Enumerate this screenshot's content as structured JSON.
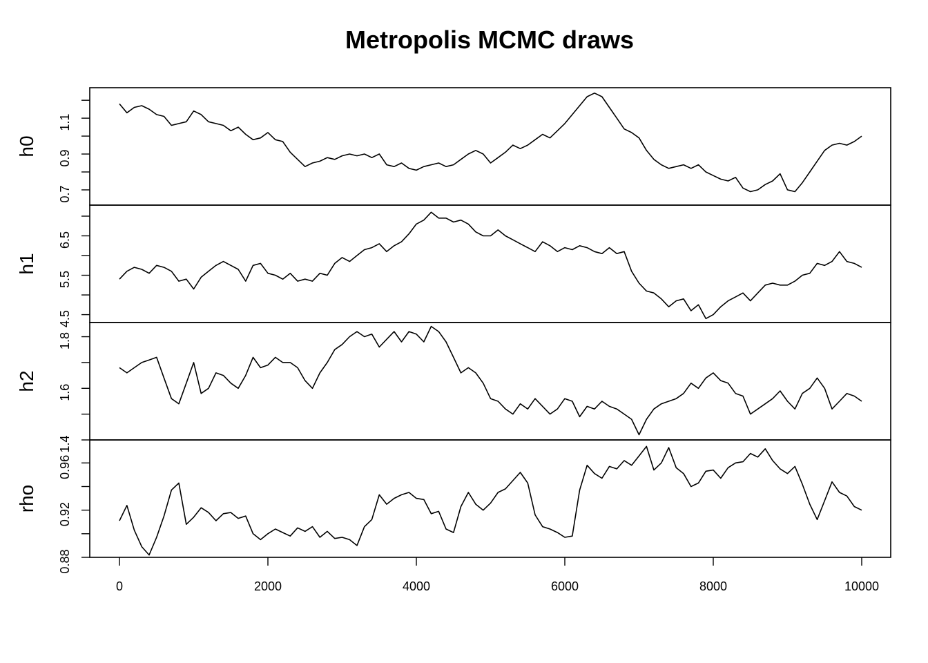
{
  "chart_data": {
    "type": "line",
    "title": "Metropolis MCMC draws",
    "x_range": [
      0,
      10000
    ],
    "x_ticks": [
      0,
      2000,
      4000,
      6000,
      8000,
      10000
    ],
    "x_tick_labels": [
      "0",
      "2000",
      "4000",
      "6000",
      "8000",
      "10000"
    ],
    "grid": false,
    "legend": "none",
    "line_color": "#000000",
    "panels": [
      {
        "ylabel": "h0",
        "ylim": [
          0.615,
          1.27
        ],
        "y_ticks": [
          0.6,
          0.7,
          0.8,
          0.9,
          1.0,
          1.1,
          1.2
        ],
        "y_tick_labels": [
          "",
          "0.7",
          "",
          "0.9",
          "",
          "1.1",
          ""
        ],
        "series": [
          {
            "x": [
              0,
              100,
              200,
              300,
              400,
              500,
              600,
              700,
              800,
              900,
              1000,
              1100,
              1200,
              1300,
              1400,
              1500,
              1600,
              1700,
              1800,
              1900,
              2000,
              2100,
              2200,
              2300,
              2400,
              2500,
              2600,
              2700,
              2800,
              2900,
              3000,
              3100,
              3200,
              3300,
              3400,
              3500,
              3600,
              3700,
              3800,
              3900,
              4000,
              4100,
              4200,
              4300,
              4400,
              4500,
              4600,
              4700,
              4800,
              4900,
              5000,
              5100,
              5200,
              5300,
              5400,
              5500,
              5600,
              5700,
              5800,
              5900,
              6000,
              6100,
              6200,
              6300,
              6400,
              6500,
              6600,
              6700,
              6800,
              6900,
              7000,
              7100,
              7200,
              7300,
              7400,
              7500,
              7600,
              7700,
              7800,
              7900,
              8000,
              8100,
              8200,
              8300,
              8400,
              8500,
              8600,
              8700,
              8800,
              8900,
              9000,
              9100,
              9200,
              9300,
              9400,
              9500,
              9600,
              9700,
              9800,
              9900,
              10000
            ],
            "y": [
              1.18,
              1.13,
              1.16,
              1.17,
              1.15,
              1.12,
              1.11,
              1.06,
              1.07,
              1.08,
              1.14,
              1.12,
              1.08,
              1.07,
              1.06,
              1.03,
              1.05,
              1.01,
              0.98,
              0.99,
              1.02,
              0.98,
              0.97,
              0.91,
              0.87,
              0.83,
              0.85,
              0.86,
              0.88,
              0.87,
              0.89,
              0.9,
              0.89,
              0.9,
              0.88,
              0.9,
              0.84,
              0.83,
              0.85,
              0.82,
              0.81,
              0.83,
              0.84,
              0.85,
              0.83,
              0.84,
              0.87,
              0.9,
              0.92,
              0.9,
              0.85,
              0.88,
              0.91,
              0.95,
              0.93,
              0.95,
              0.98,
              1.01,
              0.99,
              1.03,
              1.07,
              1.12,
              1.17,
              1.22,
              1.24,
              1.22,
              1.16,
              1.1,
              1.04,
              1.02,
              0.99,
              0.92,
              0.87,
              0.84,
              0.82,
              0.83,
              0.84,
              0.82,
              0.84,
              0.8,
              0.78,
              0.76,
              0.75,
              0.77,
              0.71,
              0.69,
              0.7,
              0.73,
              0.75,
              0.79,
              0.7,
              0.69,
              0.74,
              0.8,
              0.86,
              0.92,
              0.95,
              0.96,
              0.95,
              0.97,
              1.0
            ]
          }
        ]
      },
      {
        "ylabel": "h1",
        "ylim": [
          4.3,
          7.28
        ],
        "y_ticks": [
          4.5,
          5.0,
          5.5,
          6.0,
          6.5,
          7.0
        ],
        "y_tick_labels": [
          "4.5",
          "",
          "5.5",
          "",
          "6.5",
          ""
        ],
        "series": [
          {
            "x": [
              0,
              100,
              200,
              300,
              400,
              500,
              600,
              700,
              800,
              900,
              1000,
              1100,
              1200,
              1300,
              1400,
              1500,
              1600,
              1700,
              1800,
              1900,
              2000,
              2100,
              2200,
              2300,
              2400,
              2500,
              2600,
              2700,
              2800,
              2900,
              3000,
              3100,
              3200,
              3300,
              3400,
              3500,
              3600,
              3700,
              3800,
              3900,
              4000,
              4100,
              4200,
              4300,
              4400,
              4500,
              4600,
              4700,
              4800,
              4900,
              5000,
              5100,
              5200,
              5300,
              5400,
              5500,
              5600,
              5700,
              5800,
              5900,
              6000,
              6100,
              6200,
              6300,
              6400,
              6500,
              6600,
              6700,
              6800,
              6900,
              7000,
              7100,
              7200,
              7300,
              7400,
              7500,
              7600,
              7700,
              7800,
              7900,
              8000,
              8100,
              8200,
              8300,
              8400,
              8500,
              8600,
              8700,
              8800,
              8900,
              9000,
              9100,
              9200,
              9300,
              9400,
              9500,
              9600,
              9700,
              9800,
              9900,
              10000
            ],
            "y": [
              5.4,
              5.6,
              5.7,
              5.65,
              5.55,
              5.75,
              5.7,
              5.6,
              5.35,
              5.4,
              5.15,
              5.45,
              5.6,
              5.75,
              5.85,
              5.75,
              5.65,
              5.35,
              5.75,
              5.8,
              5.55,
              5.5,
              5.4,
              5.55,
              5.35,
              5.4,
              5.35,
              5.55,
              5.5,
              5.8,
              5.95,
              5.85,
              6.0,
              6.15,
              6.2,
              6.3,
              6.1,
              6.25,
              6.35,
              6.55,
              6.8,
              6.9,
              7.1,
              6.95,
              6.95,
              6.85,
              6.9,
              6.8,
              6.6,
              6.5,
              6.5,
              6.65,
              6.5,
              6.4,
              6.3,
              6.2,
              6.1,
              6.35,
              6.25,
              6.1,
              6.2,
              6.15,
              6.25,
              6.2,
              6.1,
              6.05,
              6.2,
              6.05,
              6.1,
              5.6,
              5.3,
              5.1,
              5.05,
              4.9,
              4.7,
              4.85,
              4.9,
              4.6,
              4.75,
              4.4,
              4.5,
              4.7,
              4.85,
              4.95,
              5.05,
              4.85,
              5.05,
              5.25,
              5.3,
              5.25,
              5.25,
              5.35,
              5.5,
              5.55,
              5.8,
              5.75,
              5.85,
              6.1,
              5.85,
              5.8,
              5.7
            ]
          }
        ]
      },
      {
        "ylabel": "h2",
        "ylim": [
          1.4,
          1.855
        ],
        "y_ticks": [
          1.4,
          1.5,
          1.6,
          1.7,
          1.8
        ],
        "y_tick_labels": [
          "1.4",
          "",
          "1.6",
          "",
          "1.8"
        ],
        "series": [
          {
            "x": [
              0,
              100,
              200,
              300,
              400,
              500,
              600,
              700,
              800,
              900,
              1000,
              1100,
              1200,
              1300,
              1400,
              1500,
              1600,
              1700,
              1800,
              1900,
              2000,
              2100,
              2200,
              2300,
              2400,
              2500,
              2600,
              2700,
              2800,
              2900,
              3000,
              3100,
              3200,
              3300,
              3400,
              3500,
              3600,
              3700,
              3800,
              3900,
              4000,
              4100,
              4200,
              4300,
              4400,
              4500,
              4600,
              4700,
              4800,
              4900,
              5000,
              5100,
              5200,
              5300,
              5400,
              5500,
              5600,
              5700,
              5800,
              5900,
              6000,
              6100,
              6200,
              6300,
              6400,
              6500,
              6600,
              6700,
              6800,
              6900,
              7000,
              7100,
              7200,
              7300,
              7400,
              7500,
              7600,
              7700,
              7800,
              7900,
              8000,
              8100,
              8200,
              8300,
              8400,
              8500,
              8600,
              8700,
              8800,
              8900,
              9000,
              9100,
              9200,
              9300,
              9400,
              9500,
              9600,
              9700,
              9800,
              9900,
              10000
            ],
            "y": [
              1.68,
              1.66,
              1.68,
              1.7,
              1.71,
              1.72,
              1.64,
              1.56,
              1.54,
              1.62,
              1.7,
              1.58,
              1.6,
              1.66,
              1.65,
              1.62,
              1.6,
              1.65,
              1.72,
              1.68,
              1.69,
              1.72,
              1.7,
              1.7,
              1.68,
              1.63,
              1.6,
              1.66,
              1.7,
              1.75,
              1.77,
              1.8,
              1.82,
              1.8,
              1.81,
              1.76,
              1.79,
              1.82,
              1.78,
              1.82,
              1.81,
              1.78,
              1.84,
              1.82,
              1.78,
              1.72,
              1.66,
              1.68,
              1.66,
              1.62,
              1.56,
              1.55,
              1.52,
              1.5,
              1.54,
              1.52,
              1.56,
              1.53,
              1.5,
              1.52,
              1.56,
              1.55,
              1.49,
              1.53,
              1.52,
              1.55,
              1.53,
              1.52,
              1.5,
              1.48,
              1.42,
              1.48,
              1.52,
              1.54,
              1.55,
              1.56,
              1.58,
              1.62,
              1.6,
              1.64,
              1.66,
              1.63,
              1.62,
              1.58,
              1.57,
              1.5,
              1.52,
              1.54,
              1.56,
              1.59,
              1.55,
              1.52,
              1.58,
              1.6,
              1.64,
              1.6,
              1.52,
              1.55,
              1.58,
              1.57,
              1.55
            ]
          }
        ]
      },
      {
        "ylabel": "rho",
        "ylim": [
          0.88,
          0.9795
        ],
        "y_ticks": [
          0.88,
          0.9,
          0.92,
          0.94,
          0.96
        ],
        "y_tick_labels": [
          "0.88",
          "",
          "0.92",
          "",
          "0.96"
        ],
        "series": [
          {
            "x": [
              0,
              100,
              200,
              300,
              400,
              500,
              600,
              700,
              800,
              900,
              1000,
              1100,
              1200,
              1300,
              1400,
              1500,
              1600,
              1700,
              1800,
              1900,
              2000,
              2100,
              2200,
              2300,
              2400,
              2500,
              2600,
              2700,
              2800,
              2900,
              3000,
              3100,
              3200,
              3300,
              3400,
              3500,
              3600,
              3700,
              3800,
              3900,
              4000,
              4100,
              4200,
              4300,
              4400,
              4500,
              4600,
              4700,
              4800,
              4900,
              5000,
              5100,
              5200,
              5300,
              5400,
              5500,
              5600,
              5700,
              5800,
              5900,
              6000,
              6100,
              6200,
              6300,
              6400,
              6500,
              6600,
              6700,
              6800,
              6900,
              7000,
              7100,
              7200,
              7300,
              7400,
              7500,
              7600,
              7700,
              7800,
              7900,
              8000,
              8100,
              8200,
              8300,
              8400,
              8500,
              8600,
              8700,
              8800,
              8900,
              9000,
              9100,
              9200,
              9300,
              9400,
              9500,
              9600,
              9700,
              9800,
              9900,
              10000
            ],
            "y": [
              0.911,
              0.924,
              0.903,
              0.889,
              0.882,
              0.897,
              0.915,
              0.937,
              0.943,
              0.908,
              0.914,
              0.922,
              0.918,
              0.911,
              0.917,
              0.918,
              0.913,
              0.915,
              0.9,
              0.895,
              0.9,
              0.904,
              0.901,
              0.898,
              0.905,
              0.902,
              0.906,
              0.897,
              0.902,
              0.896,
              0.897,
              0.895,
              0.89,
              0.906,
              0.912,
              0.933,
              0.925,
              0.93,
              0.933,
              0.935,
              0.93,
              0.929,
              0.917,
              0.919,
              0.904,
              0.901,
              0.923,
              0.935,
              0.925,
              0.92,
              0.926,
              0.935,
              0.938,
              0.945,
              0.952,
              0.943,
              0.916,
              0.906,
              0.904,
              0.901,
              0.897,
              0.898,
              0.937,
              0.958,
              0.951,
              0.947,
              0.957,
              0.955,
              0.962,
              0.958,
              0.966,
              0.974,
              0.954,
              0.96,
              0.973,
              0.956,
              0.951,
              0.94,
              0.943,
              0.953,
              0.954,
              0.947,
              0.956,
              0.96,
              0.961,
              0.968,
              0.965,
              0.972,
              0.962,
              0.955,
              0.951,
              0.957,
              0.942,
              0.925,
              0.912,
              0.928,
              0.944,
              0.935,
              0.932,
              0.923,
              0.92
            ]
          }
        ]
      }
    ]
  }
}
